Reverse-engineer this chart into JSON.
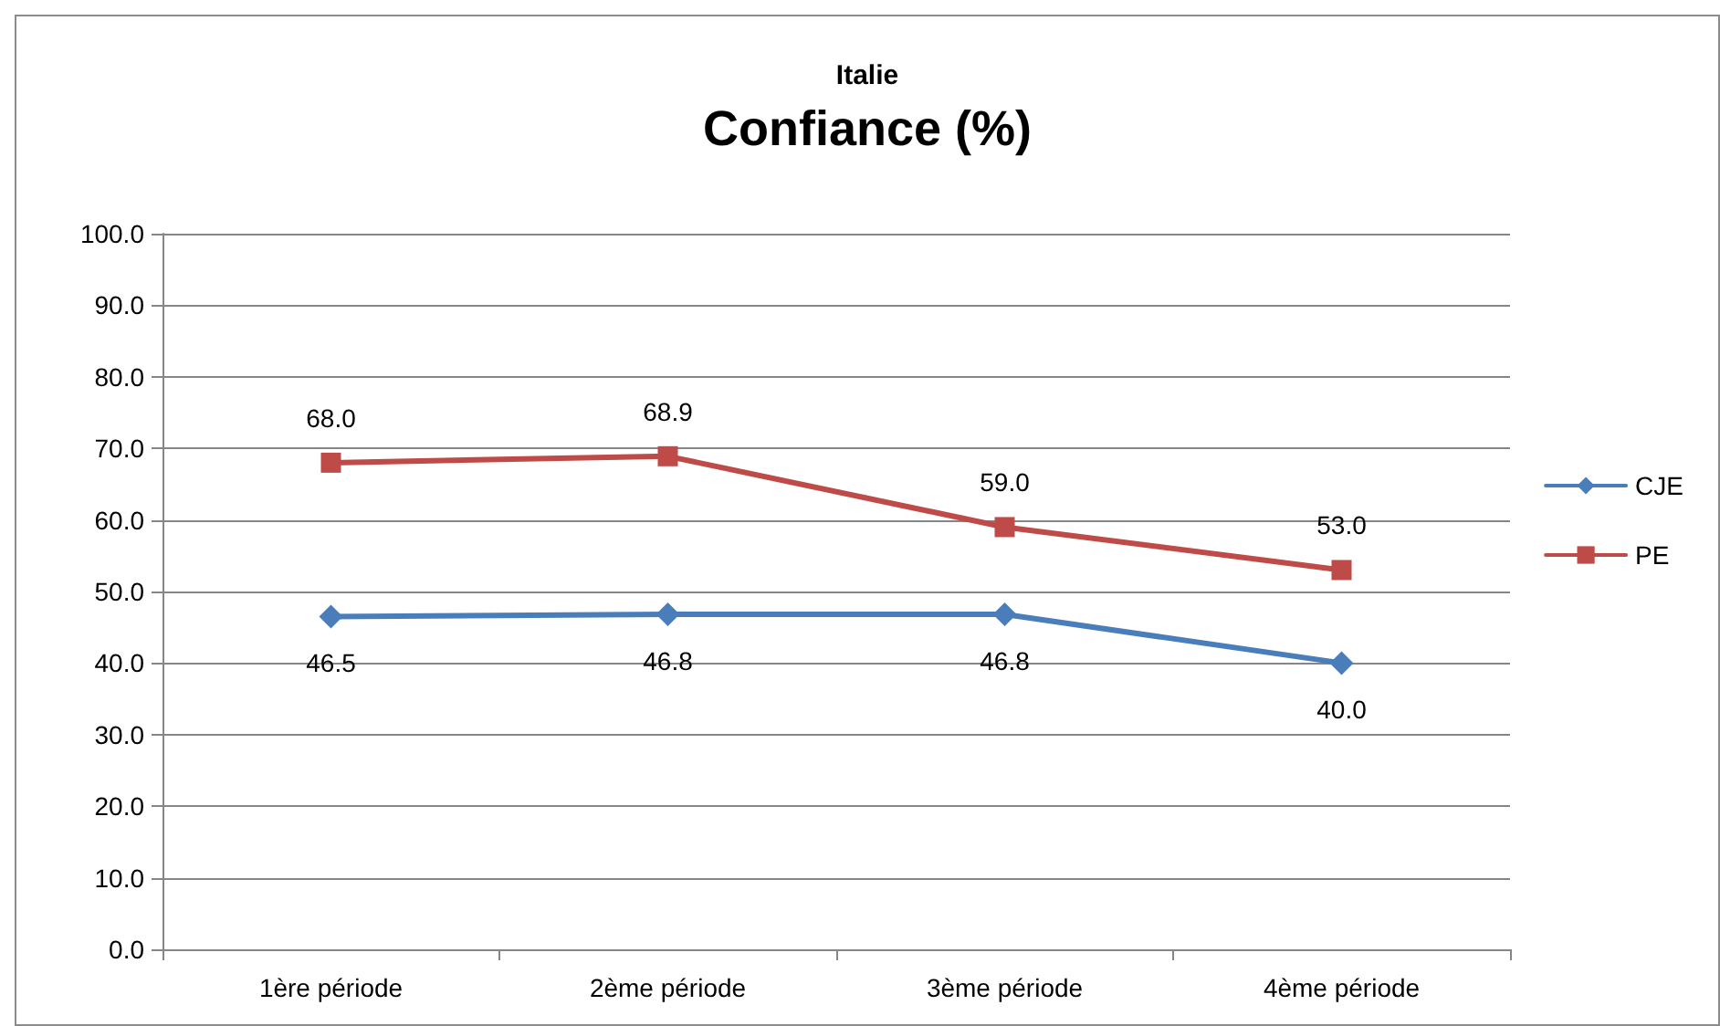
{
  "chart_data": {
    "type": "line",
    "title": "Italie",
    "subtitle": "Confiance (%)",
    "categories": [
      "1ère période",
      "2ème période",
      "3ème période",
      "4ème période"
    ],
    "series": [
      {
        "name": "CJE",
        "color": "#4a7ebb",
        "marker": "diamond",
        "values": [
          46.5,
          46.8,
          46.8,
          40.0
        ],
        "value_labels": [
          "46.5",
          "46.8",
          "46.8",
          "40.0"
        ]
      },
      {
        "name": "PE",
        "color": "#be4b48",
        "marker": "square",
        "values": [
          68.0,
          68.9,
          59.0,
          53.0
        ],
        "value_labels": [
          "68.0",
          "68.9",
          "59.0",
          "53.0"
        ]
      }
    ],
    "ylim": [
      0,
      100
    ],
    "yticks": [
      {
        "value": 0,
        "label": "0.0"
      },
      {
        "value": 10,
        "label": "10.0"
      },
      {
        "value": 20,
        "label": "20.0"
      },
      {
        "value": 30,
        "label": "30.0"
      },
      {
        "value": 40,
        "label": "40.0"
      },
      {
        "value": 50,
        "label": "50.0"
      },
      {
        "value": 60,
        "label": "60.0"
      },
      {
        "value": 70,
        "label": "70.0"
      },
      {
        "value": 80,
        "label": "80.0"
      },
      {
        "value": 90,
        "label": "90.0"
      },
      {
        "value": 100,
        "label": "100.0"
      }
    ],
    "grid": "y",
    "legend": "right",
    "line_style": "solid"
  }
}
